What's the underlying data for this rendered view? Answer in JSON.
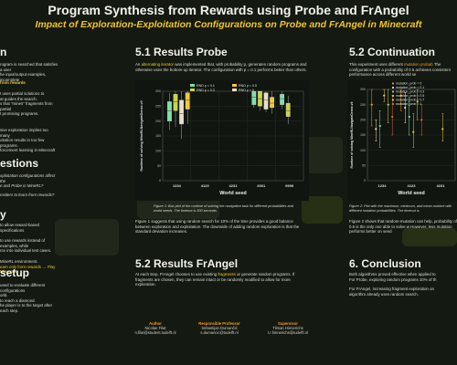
{
  "header": {
    "title": "Program Synthesis from Rewards using Probe and FrAngel",
    "subtitle": "Impact of Exploration-Exploitation Configurations on Probe and FrAngel in Minecraft"
  },
  "left_column": {
    "s1_title": "n",
    "s1_lines": [
      "rogram is searched that satisfies a user",
      "he input/output examples, incomplete"
    ],
    "s1_sub": "from rewards",
    "s1_lines2": [
      "t uses partial solutions to",
      "at guides the search.",
      "s that \"mines\" fragments from partial",
      "t promising programs."
    ],
    "s1_lines3": [
      "sive exploration implies too many",
      "oitation results in too few programs.",
      "forcement learning in Minecraft"
    ],
    "s2_title": "estions",
    "s2_lines": [
      "xploitation configurations affect the",
      "e and Probe in MineRL?",
      "nsiders to learn from rewards?"
    ],
    "s3_title": "y",
    "s3_lines": [
      "to allow reward-based specifications",
      "to use rewards instead of examples, while",
      "rce into individual test cases.",
      "MineRL environment.",
      "earn only from rewards → Play Minecraft"
    ],
    "s4_title": "setup",
    "s4_lines": [
      "used to evaluate different configurations",
      "orld.",
      "to reach a diamond.",
      "he player is to the target after each step."
    ]
  },
  "probe": {
    "title": "5.1 Results Probe",
    "intro_pre": "An ",
    "intro_hl": "alternating iterator",
    "intro_post": " was implemented that, with probability p, generates random programs and otherwise uses the bottom-up iterator. The configuration with p = 0.1 performs better than others.",
    "caption": "Figure 1: Box plot of the runtime of solving the navigation task for different probabilities and world seeds. The timeout is 300 seconds.",
    "conclusion": "Figure 1 suggests that using random search for 10% of the time provides a good balance between exploration and exploitation. The downside of adding random exploration is that the standard deviation increases."
  },
  "frangel": {
    "title": "5.2 Results FrAngel",
    "text_pre": "At each step, FrAngel chooses to use existing ",
    "text_hl": "fragments",
    "text_post": " or generate random programs. If fragments are chosen, they can remain intact or be randomly modified to allow for more exploration."
  },
  "continuation": {
    "title": "5.2 Continuation",
    "intro_pre": "This experiment uses different ",
    "intro_hl": "mutation probab",
    "intro_post": " The configuration with a probability of 0.5 achieves consistent performance across different world se",
    "caption": "Figure 2: Plot with the maximum, minimum, and mean runtime with different mutation probabilities. The timeout is",
    "conclusion": "Figure 2 shows that random-mutation can help, probability of 0.5 is the only one able to solve w However, less mutation performs better on seed"
  },
  "conclusion": {
    "title": "6. Conclusion",
    "lines": [
      "Both algorithms proved effective when applied to",
      "For Probe, exploring random programs 10% of th",
      "For FrAngel, increasing fragment exploration on",
      "algorithm already uses random search."
    ]
  },
  "footer": {
    "author_role": "Author",
    "author_name": "Nicolae Filat",
    "author_email": "n.filat@student.tudelft.nl",
    "prof_role": "Responsible Professor",
    "prof_name": "Sebastijan Dumančić",
    "prof_email": "s.dumancic@tudelft.nl",
    "sup_role": "Supervisor",
    "sup_name": "Tilman Hinnerichs",
    "sup_email": "t.r.hinnerichs@tudelft.nl"
  },
  "chart_data": [
    {
      "type": "box",
      "title": "",
      "xlabel": "World seed",
      "ylabel": "Runtime of solving MineRLNavigateDense-v0",
      "categories": [
        "1234",
        "4123",
        "4231",
        "6001",
        "9999"
      ],
      "ylim": [
        0,
        300
      ],
      "legend": [
        "RND p = 0.1",
        "RND p = 0.5",
        "RND p = 0.3",
        "RND p = 0"
      ],
      "series": [
        {
          "name": "RND p = 0.1",
          "color": "#7fe0a8",
          "boxes": [
            [
              170,
              200,
              235,
              265,
              295
            ],
            null,
            null,
            [
              245,
              255,
              280,
              300,
              300
            ],
            [
              240,
              255,
              275,
              290,
              300
            ]
          ]
        },
        {
          "name": "RND p = 0.3",
          "color": "#c8d44a",
          "boxes": [
            [
              180,
              235,
              265,
              290,
              300
            ],
            null,
            null,
            [
              235,
              250,
              275,
              300,
              300
            ],
            [
              190,
              215,
              235,
              260,
              285
            ]
          ]
        },
        {
          "name": "RND p = 0",
          "color": "#e9dfc5",
          "boxes": [
            [
              140,
              190,
              225,
              270,
              300
            ],
            null,
            null,
            [
              230,
              240,
              270,
              295,
              300
            ],
            null
          ]
        },
        {
          "name": "RND p = 0.5",
          "color": "#f0c93a",
          "boxes": [
            [
              190,
              240,
              270,
              295,
              300
            ],
            null,
            null,
            [
              225,
              245,
              260,
              280,
              300
            ],
            null
          ]
        }
      ]
    },
    {
      "type": "scatter",
      "title": "",
      "xlabel": "World seed",
      "ylabel": "Runtime of solving MineRLNavigateDense-v0",
      "categories": [
        "1234",
        "4123",
        "4231"
      ],
      "ylim": [
        0,
        300
      ],
      "legend": [
        "mutation_prob = 0",
        "mutation_prob = 0.1",
        "mutation_prob = 0.3",
        "mutation_prob = 0.5",
        "mutation_prob = 0.7",
        "mutation_prob = 1"
      ],
      "series": [
        {
          "name": "mutation_prob = 0",
          "color": "#f59a1e",
          "values": [
            [
              300,
              180,
              250
            ],
            [
              300,
              230,
              280
            ],
            [
              null,
              170,
              null
            ]
          ]
        },
        {
          "name": "mutation_prob = 0.1",
          "color": "#e9dfc5",
          "values": [
            [
              200,
              130,
              170
            ],
            [
              290,
              190,
              240
            ],
            [
              null,
              null,
              null
            ]
          ]
        },
        {
          "name": "mutation_prob = 0.3",
          "color": "#7fe0a8",
          "values": [
            [
              230,
              110,
              180
            ],
            [
              270,
              150,
              210
            ],
            [
              null,
              null,
              null
            ]
          ]
        },
        {
          "name": "mutation_prob = 0.5",
          "color": "#f0c93a",
          "values": [
            [
              300,
              260,
              280
            ],
            [
              220,
              110,
              160
            ],
            [
              220,
              130,
              170
            ]
          ]
        },
        {
          "name": "mutation_prob = 0.7",
          "color": "#c8d44a",
          "values": [
            [
              300,
              190,
              250
            ],
            [
              300,
              200,
              260
            ],
            [
              null,
              null,
              null
            ]
          ]
        },
        {
          "name": "mutation_prob = 1",
          "color": "#d96a3a",
          "values": [
            [
              280,
              150,
              210
            ],
            [
              250,
              150,
              200
            ],
            [
              null,
              null,
              null
            ]
          ]
        }
      ]
    }
  ]
}
